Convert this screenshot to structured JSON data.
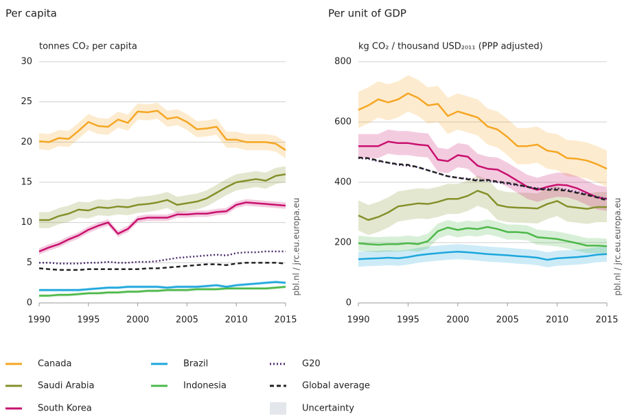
{
  "chart_data": [
    {
      "type": "line",
      "title": "Per capita",
      "y_label": "tonnes CO₂ per capita",
      "source": "pbl.nl / jrc.eu.europa.eu",
      "uncertainty_label": "Uncertainty",
      "x": [
        1990,
        1991,
        1992,
        1993,
        1994,
        1995,
        1996,
        1997,
        1998,
        1999,
        2000,
        2001,
        2002,
        2003,
        2004,
        2005,
        2006,
        2007,
        2008,
        2009,
        2010,
        2011,
        2012,
        2013,
        2014,
        2015
      ],
      "xlim": [
        1990,
        2015
      ],
      "xticks": [
        1990,
        1995,
        2000,
        2005,
        2010,
        2015
      ],
      "ylim": [
        0,
        30
      ],
      "yticks": [
        0,
        5,
        10,
        15,
        20,
        25,
        30
      ],
      "grid": true,
      "series": [
        {
          "name": "Canada",
          "color": "#f5a623",
          "uncertainty": 1,
          "values": [
            20.1,
            20.0,
            20.5,
            20.4,
            21.4,
            22.5,
            22.0,
            21.9,
            22.8,
            22.4,
            23.8,
            23.7,
            23.9,
            22.9,
            23.1,
            22.5,
            21.6,
            21.7,
            21.9,
            20.3,
            20.3,
            20.0,
            20.0,
            20.0,
            19.8,
            19.0
          ]
        },
        {
          "name": "Saudi Arabia",
          "color": "#84902a",
          "uncertainty": 1,
          "values": [
            10.3,
            10.3,
            10.8,
            11.1,
            11.6,
            11.5,
            11.9,
            11.8,
            12.0,
            11.9,
            12.2,
            12.3,
            12.5,
            12.8,
            12.2,
            12.4,
            12.6,
            13.0,
            13.7,
            14.4,
            15.0,
            15.2,
            15.4,
            15.2,
            15.8,
            16.0
          ]
        },
        {
          "name": "South Korea",
          "color": "#c8106e",
          "uncertainty": 0.4,
          "values": [
            6.4,
            6.9,
            7.3,
            7.9,
            8.4,
            9.1,
            9.6,
            10.0,
            8.6,
            9.2,
            10.4,
            10.6,
            10.6,
            10.6,
            11.0,
            11.0,
            11.1,
            11.1,
            11.3,
            11.4,
            12.2,
            12.5,
            12.4,
            12.3,
            12.2,
            12.1
          ]
        },
        {
          "name": "Brazil",
          "color": "#1ba6dc",
          "uncertainty": 0.2,
          "values": [
            1.6,
            1.6,
            1.6,
            1.6,
            1.6,
            1.7,
            1.8,
            1.9,
            1.9,
            2.0,
            2.0,
            2.0,
            2.0,
            1.9,
            2.0,
            2.0,
            2.0,
            2.1,
            2.2,
            2.0,
            2.2,
            2.3,
            2.4,
            2.5,
            2.6,
            2.5
          ]
        },
        {
          "name": "Indonesia",
          "color": "#4cb848",
          "uncertainty": 0.2,
          "values": [
            0.9,
            0.9,
            1.0,
            1.0,
            1.1,
            1.2,
            1.2,
            1.3,
            1.3,
            1.4,
            1.4,
            1.5,
            1.5,
            1.6,
            1.6,
            1.6,
            1.7,
            1.7,
            1.7,
            1.8,
            1.8,
            1.8,
            1.8,
            1.8,
            1.9,
            2.0
          ]
        },
        {
          "name": "G20",
          "color": "#4b2a6b",
          "dash": "dotted",
          "values": [
            5.0,
            5.0,
            4.9,
            4.9,
            4.9,
            5.0,
            5.0,
            5.1,
            5.0,
            5.0,
            5.1,
            5.1,
            5.2,
            5.4,
            5.6,
            5.7,
            5.8,
            5.9,
            6.0,
            5.9,
            6.2,
            6.3,
            6.3,
            6.4,
            6.4,
            6.4
          ]
        },
        {
          "name": "Global average",
          "color": "#222222",
          "dash": "dashed",
          "values": [
            4.3,
            4.2,
            4.1,
            4.1,
            4.1,
            4.2,
            4.2,
            4.2,
            4.2,
            4.2,
            4.2,
            4.3,
            4.3,
            4.4,
            4.5,
            4.6,
            4.7,
            4.8,
            4.8,
            4.7,
            4.9,
            5.0,
            5.0,
            5.0,
            5.0,
            4.9
          ]
        }
      ]
    },
    {
      "type": "line",
      "title": "Per unit of GDP",
      "y_label": "kg CO₂ / thousand USD₂₀₁₁ (PPP adjusted)",
      "source": "pbl.nl / jrc.eu.europa.eu",
      "x": [
        1990,
        1991,
        1992,
        1993,
        1994,
        1995,
        1996,
        1997,
        1998,
        1999,
        2000,
        2001,
        2002,
        2003,
        2004,
        2005,
        2006,
        2007,
        2008,
        2009,
        2010,
        2011,
        2012,
        2013,
        2014,
        2015
      ],
      "xlim": [
        1990,
        2015
      ],
      "xticks": [
        1990,
        1995,
        2000,
        2005,
        2010,
        2015
      ],
      "ylim": [
        0,
        800
      ],
      "yticks": [
        0,
        200,
        400,
        600,
        800
      ],
      "grid": true,
      "series": [
        {
          "name": "Canada",
          "color": "#f5a623",
          "uncertainty": 60,
          "values": [
            640,
            655,
            675,
            665,
            675,
            695,
            680,
            655,
            660,
            620,
            635,
            625,
            615,
            585,
            575,
            550,
            520,
            520,
            525,
            505,
            500,
            480,
            478,
            472,
            460,
            445
          ]
        },
        {
          "name": "Saudi Arabia",
          "color": "#84902a",
          "uncertainty": 50,
          "values": [
            290,
            275,
            285,
            300,
            320,
            325,
            330,
            328,
            335,
            345,
            345,
            355,
            372,
            360,
            325,
            318,
            316,
            315,
            313,
            328,
            338,
            320,
            316,
            312,
            318,
            318
          ]
        },
        {
          "name": "South Korea",
          "color": "#c8106e",
          "uncertainty": 40,
          "values": [
            520,
            520,
            520,
            535,
            530,
            530,
            525,
            522,
            475,
            470,
            490,
            485,
            455,
            445,
            442,
            425,
            405,
            385,
            375,
            385,
            392,
            390,
            380,
            365,
            350,
            345
          ]
        },
        {
          "name": "Brazil",
          "color": "#1ba6dc",
          "uncertainty": 25,
          "values": [
            145,
            147,
            148,
            150,
            148,
            152,
            158,
            162,
            165,
            168,
            170,
            168,
            165,
            162,
            160,
            158,
            155,
            153,
            150,
            143,
            148,
            150,
            152,
            155,
            160,
            162
          ]
        },
        {
          "name": "Indonesia",
          "color": "#4cb848",
          "uncertainty": 25,
          "values": [
            198,
            195,
            193,
            195,
            195,
            198,
            195,
            205,
            238,
            250,
            242,
            248,
            245,
            252,
            245,
            235,
            235,
            232,
            218,
            215,
            212,
            205,
            198,
            190,
            190,
            188
          ]
        },
        {
          "name": "G20",
          "color": "#4b2a6b",
          "dash": "dotted",
          "values": [
            480,
            478,
            470,
            465,
            458,
            455,
            450,
            440,
            430,
            420,
            415,
            412,
            408,
            405,
            400,
            395,
            390,
            385,
            380,
            378,
            380,
            375,
            368,
            360,
            352,
            345
          ]
        },
        {
          "name": "Global average",
          "color": "#222222",
          "dash": "dashed",
          "values": [
            482,
            480,
            472,
            465,
            460,
            458,
            450,
            440,
            430,
            420,
            415,
            410,
            405,
            408,
            402,
            398,
            392,
            385,
            378,
            375,
            375,
            372,
            365,
            358,
            350,
            340
          ]
        }
      ]
    }
  ]
}
